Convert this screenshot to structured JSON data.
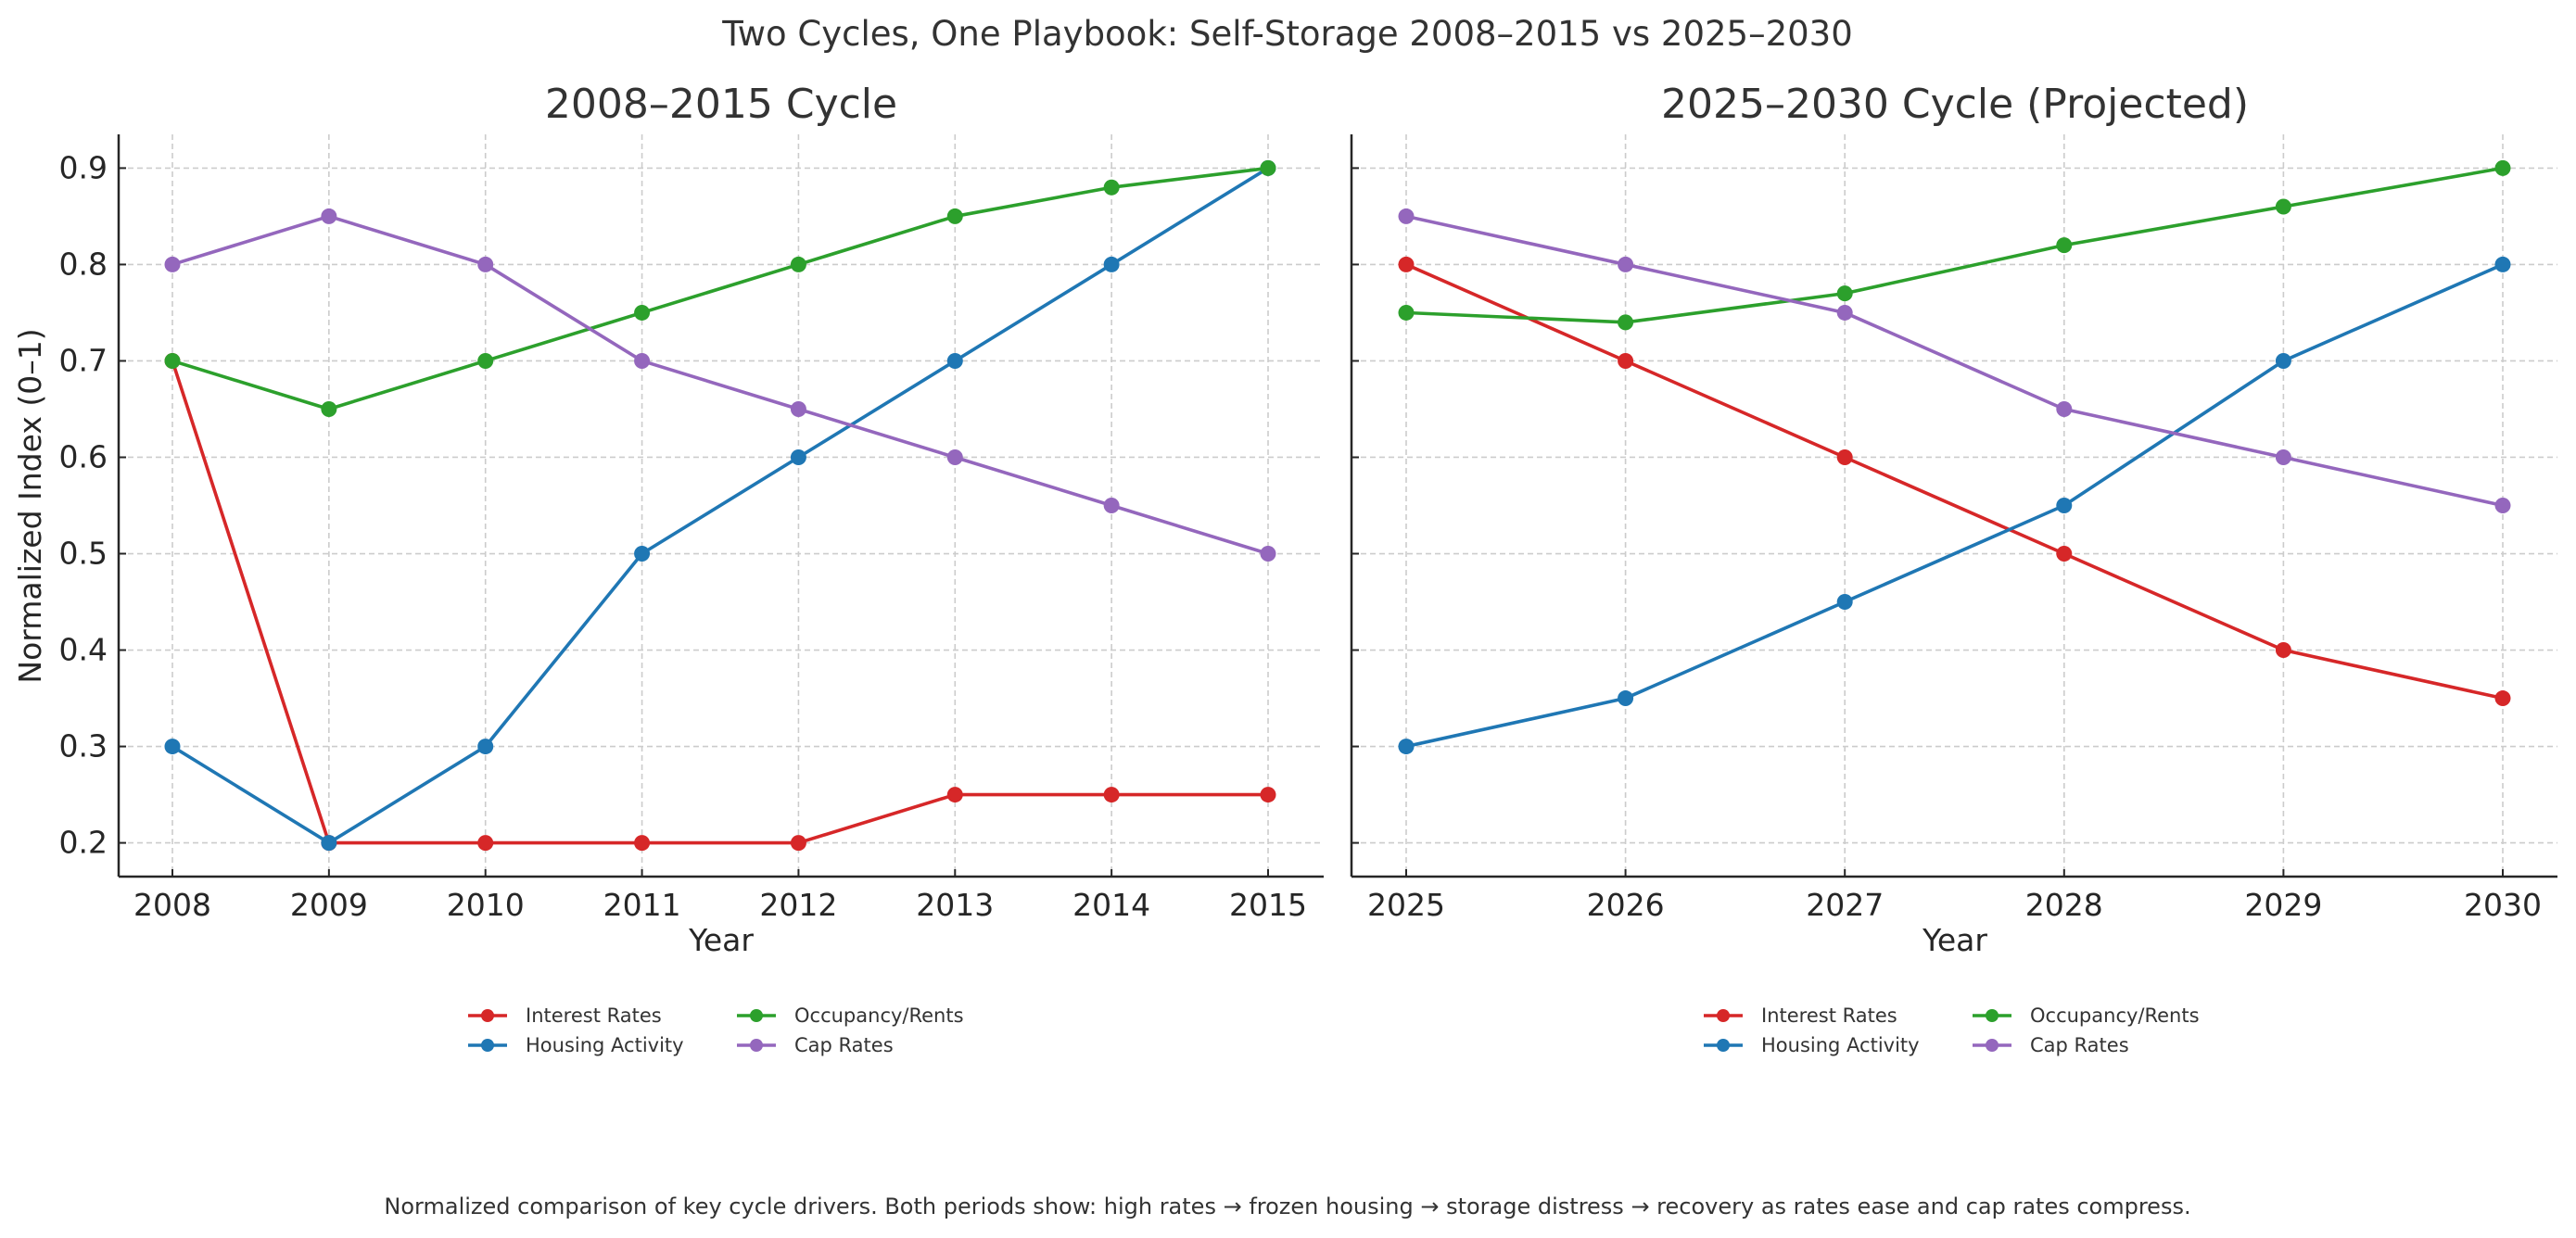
{
  "suptitle": "Two Cycles, One Playbook: Self-Storage 2008–2015 vs 2025–2030",
  "caption": "Normalized comparison of key cycle drivers. Both periods show: high rates → frozen housing → storage distress → recovery as rates ease and cap rates compress.",
  "colors": {
    "Interest Rates": "#d62728",
    "Housing Activity": "#1f77b4",
    "Occupancy/Rents": "#2ca02c",
    "Cap Rates": "#9467bd"
  },
  "chart_data": [
    {
      "type": "line",
      "title": "2008–2015 Cycle",
      "xlabel": "Year",
      "ylabel": "Normalized Index (0–1)",
      "x": [
        2008,
        2009,
        2010,
        2011,
        2012,
        2013,
        2014,
        2015
      ],
      "x_tick_labels": [
        "2008",
        "2009",
        "2010",
        "2011",
        "2012",
        "2013",
        "2014",
        "2015"
      ],
      "ylim": [
        0.165,
        0.935
      ],
      "y_ticks": [
        0.2,
        0.3,
        0.4,
        0.5,
        0.6,
        0.7,
        0.8,
        0.9
      ],
      "y_tick_labels": [
        "0.2",
        "0.3",
        "0.4",
        "0.5",
        "0.6",
        "0.7",
        "0.8",
        "0.9"
      ],
      "grid": true,
      "legend_position": "bottom-center",
      "series": [
        {
          "name": "Interest Rates",
          "values": [
            0.7,
            0.2,
            0.2,
            0.2,
            0.2,
            0.25,
            0.25,
            0.25
          ]
        },
        {
          "name": "Housing Activity",
          "values": [
            0.3,
            0.2,
            0.3,
            0.5,
            0.6,
            0.7,
            0.8,
            0.9
          ]
        },
        {
          "name": "Occupancy/Rents",
          "values": [
            0.7,
            0.65,
            0.7,
            0.75,
            0.8,
            0.85,
            0.88,
            0.9
          ]
        },
        {
          "name": "Cap Rates",
          "values": [
            0.8,
            0.85,
            0.8,
            0.7,
            0.65,
            0.6,
            0.55,
            0.5
          ]
        }
      ]
    },
    {
      "type": "line",
      "title": "2025–2030 Cycle (Projected)",
      "xlabel": "Year",
      "ylabel": "",
      "x": [
        2025,
        2026,
        2027,
        2028,
        2029,
        2030
      ],
      "x_tick_labels": [
        "2025",
        "2026",
        "2027",
        "2028",
        "2029",
        "2030"
      ],
      "ylim": [
        0.165,
        0.935
      ],
      "y_ticks": [
        0.2,
        0.3,
        0.4,
        0.5,
        0.6,
        0.7,
        0.8,
        0.9
      ],
      "y_tick_labels": [],
      "grid": true,
      "legend_position": "bottom-center",
      "series": [
        {
          "name": "Interest Rates",
          "values": [
            0.8,
            0.7,
            0.6,
            0.5,
            0.4,
            0.35
          ]
        },
        {
          "name": "Housing Activity",
          "values": [
            0.3,
            0.35,
            0.45,
            0.55,
            0.7,
            0.8
          ]
        },
        {
          "name": "Occupancy/Rents",
          "values": [
            0.75,
            0.74,
            0.77,
            0.82,
            0.86,
            0.9
          ]
        },
        {
          "name": "Cap Rates",
          "values": [
            0.85,
            0.8,
            0.75,
            0.65,
            0.6,
            0.55
          ]
        }
      ]
    }
  ]
}
